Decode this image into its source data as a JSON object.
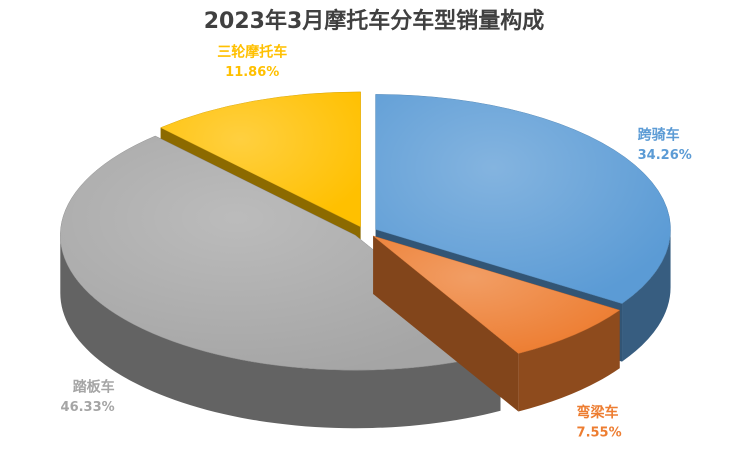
{
  "chart_data": {
    "type": "pie",
    "title": "2023年3月摩托车分车型销量构成",
    "categories": [
      "跨骑车",
      "弯梁车",
      "踏板车",
      "三轮摩托车"
    ],
    "values": [
      34.26,
      7.55,
      46.33,
      11.86
    ],
    "value_labels": [
      "34.26%",
      "7.55%",
      "46.33%",
      "11.86%"
    ],
    "colors": [
      "#5b9bd5",
      "#ed7d31",
      "#a5a5a5",
      "#ffc000"
    ]
  }
}
